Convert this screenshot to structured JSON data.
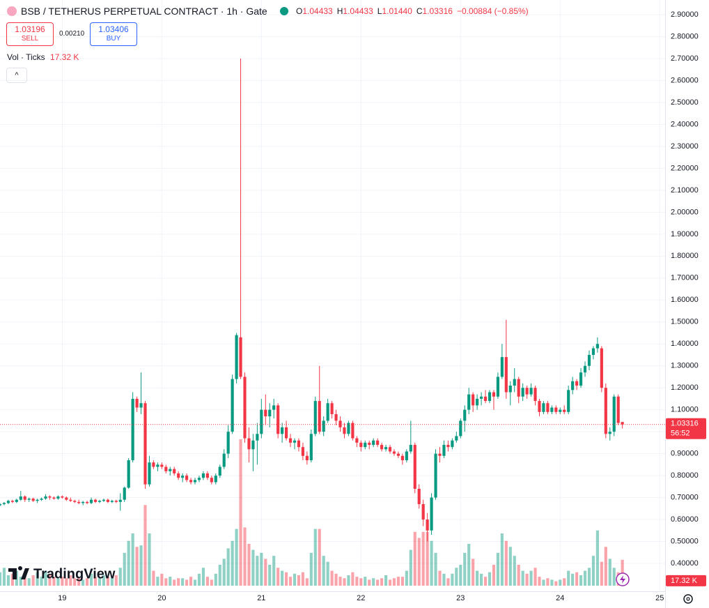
{
  "chart_data": {
    "type": "candlestick",
    "title": "BSB / TETHERUS PERPETUAL CONTRACT · 1h · Gate",
    "ohlc_legend": [
      {
        "label": "O",
        "value": "1.04433"
      },
      {
        "label": "H",
        "value": "1.04433"
      },
      {
        "label": "L",
        "value": "1.01440"
      },
      {
        "label": "C",
        "value": "1.03316"
      }
    ],
    "change": "−0.00884 (−0.85%)",
    "sell": {
      "price": "1.03196",
      "label": "SELL"
    },
    "spread": "0.00210",
    "buy": {
      "price": "1.03406",
      "label": "BUY"
    },
    "volume_legend": {
      "label": "Vol · Ticks",
      "value": "17.32 K"
    },
    "price_label": {
      "value": "1.03316",
      "countdown": "56:52"
    },
    "volume_tag": "17.32 K",
    "watermark": "TradingView",
    "up_color": "#089981",
    "down_color": "#f23645",
    "grid": true,
    "xlim": [
      0,
      160.3
    ],
    "xticks": [
      {
        "value": 15,
        "label": "19"
      },
      {
        "value": 39,
        "label": "20"
      },
      {
        "value": 63,
        "label": "21"
      },
      {
        "value": 87,
        "label": "22"
      },
      {
        "value": 111,
        "label": "23"
      },
      {
        "value": 135,
        "label": "24"
      },
      {
        "value": 159,
        "label": "25"
      }
    ],
    "ylim": [
      0.273,
      2.967
    ],
    "yticks": [
      {
        "value": 0.4,
        "label": "0.40000"
      },
      {
        "value": 0.5,
        "label": "0.50000"
      },
      {
        "value": 0.6,
        "label": "0.60000"
      },
      {
        "value": 0.7,
        "label": "0.70000"
      },
      {
        "value": 0.8,
        "label": "0.80000"
      },
      {
        "value": 0.9,
        "label": "0.90000"
      },
      {
        "value": 1.0,
        "label": "1.00000"
      },
      {
        "value": 1.1,
        "label": "1.10000"
      },
      {
        "value": 1.2,
        "label": "1.20000"
      },
      {
        "value": 1.3,
        "label": "1.30000"
      },
      {
        "value": 1.4,
        "label": "1.40000"
      },
      {
        "value": 1.5,
        "label": "1.50000"
      },
      {
        "value": 1.6,
        "label": "1.60000"
      },
      {
        "value": 1.7,
        "label": "1.70000"
      },
      {
        "value": 1.8,
        "label": "1.80000"
      },
      {
        "value": 1.9,
        "label": "1.90000"
      },
      {
        "value": 2.0,
        "label": "2.00000"
      },
      {
        "value": 2.1,
        "label": "2.10000"
      },
      {
        "value": 2.2,
        "label": "2.20000"
      },
      {
        "value": 2.3,
        "label": "2.30000"
      },
      {
        "value": 2.4,
        "label": "2.40000"
      },
      {
        "value": 2.5,
        "label": "2.50000"
      },
      {
        "value": 2.6,
        "label": "2.60000"
      },
      {
        "value": 2.7,
        "label": "2.70000"
      },
      {
        "value": 2.8,
        "label": "2.80000"
      },
      {
        "value": 2.9,
        "label": "2.90000"
      }
    ],
    "candles": [
      [
        0.665,
        0.675,
        0.66,
        0.67
      ],
      [
        0.67,
        0.68,
        0.665,
        0.675
      ],
      [
        0.675,
        0.69,
        0.67,
        0.685
      ],
      [
        0.685,
        0.69,
        0.675,
        0.68
      ],
      [
        0.68,
        0.695,
        0.675,
        0.69
      ],
      [
        0.69,
        0.73,
        0.685,
        0.705
      ],
      [
        0.705,
        0.71,
        0.68,
        0.69
      ],
      [
        0.69,
        0.7,
        0.68,
        0.695
      ],
      [
        0.695,
        0.7,
        0.68,
        0.685
      ],
      [
        0.685,
        0.695,
        0.675,
        0.69
      ],
      [
        0.69,
        0.7,
        0.685,
        0.695
      ],
      [
        0.695,
        0.715,
        0.69,
        0.705
      ],
      [
        0.705,
        0.71,
        0.69,
        0.7
      ],
      [
        0.7,
        0.705,
        0.69,
        0.695
      ],
      [
        0.695,
        0.71,
        0.69,
        0.705
      ],
      [
        0.705,
        0.71,
        0.695,
        0.7
      ],
      [
        0.7,
        0.705,
        0.685,
        0.69
      ],
      [
        0.69,
        0.7,
        0.68,
        0.685
      ],
      [
        0.685,
        0.69,
        0.675,
        0.68
      ],
      [
        0.68,
        0.69,
        0.67,
        0.675
      ],
      [
        0.675,
        0.685,
        0.665,
        0.68
      ],
      [
        0.68,
        0.685,
        0.67,
        0.675
      ],
      [
        0.675,
        0.7,
        0.67,
        0.69
      ],
      [
        0.69,
        0.695,
        0.675,
        0.68
      ],
      [
        0.68,
        0.69,
        0.675,
        0.685
      ],
      [
        0.685,
        0.695,
        0.68,
        0.69
      ],
      [
        0.69,
        0.695,
        0.675,
        0.68
      ],
      [
        0.68,
        0.69,
        0.675,
        0.685
      ],
      [
        0.685,
        0.69,
        0.675,
        0.68
      ],
      [
        0.68,
        0.72,
        0.64,
        0.69
      ],
      [
        0.69,
        0.75,
        0.68,
        0.745
      ],
      [
        0.745,
        0.88,
        0.74,
        0.87
      ],
      [
        0.87,
        1.18,
        0.86,
        1.15
      ],
      [
        1.15,
        1.16,
        1.09,
        1.11
      ],
      [
        1.11,
        1.27,
        1.08,
        1.13
      ],
      [
        1.13,
        1.14,
        0.74,
        0.76
      ],
      [
        0.76,
        0.89,
        0.75,
        0.86
      ],
      [
        0.86,
        0.87,
        0.83,
        0.84
      ],
      [
        0.84,
        0.86,
        0.82,
        0.85
      ],
      [
        0.85,
        0.86,
        0.83,
        0.84
      ],
      [
        0.84,
        0.85,
        0.81,
        0.82
      ],
      [
        0.82,
        0.84,
        0.8,
        0.83
      ],
      [
        0.83,
        0.84,
        0.8,
        0.81
      ],
      [
        0.81,
        0.82,
        0.78,
        0.79
      ],
      [
        0.79,
        0.81,
        0.77,
        0.8
      ],
      [
        0.8,
        0.81,
        0.77,
        0.78
      ],
      [
        0.78,
        0.79,
        0.76,
        0.77
      ],
      [
        0.77,
        0.79,
        0.76,
        0.78
      ],
      [
        0.78,
        0.8,
        0.77,
        0.79
      ],
      [
        0.79,
        0.82,
        0.78,
        0.81
      ],
      [
        0.81,
        0.82,
        0.78,
        0.79
      ],
      [
        0.79,
        0.8,
        0.76,
        0.77
      ],
      [
        0.77,
        0.81,
        0.76,
        0.8
      ],
      [
        0.8,
        0.85,
        0.79,
        0.84
      ],
      [
        0.84,
        0.92,
        0.83,
        0.9
      ],
      [
        0.9,
        1.03,
        0.88,
        1.0
      ],
      [
        1.0,
        1.26,
        0.99,
        1.24
      ],
      [
        1.24,
        1.45,
        1.22,
        1.44
      ],
      [
        1.43,
        2.7,
        1.24,
        1.25
      ],
      [
        1.25,
        1.27,
        0.95,
        0.97
      ],
      [
        0.97,
        1.02,
        0.86,
        0.92
      ],
      [
        0.92,
        0.99,
        0.82,
        0.96
      ],
      [
        0.96,
        1.04,
        0.85,
        0.99
      ],
      [
        0.99,
        1.15,
        0.97,
        1.1
      ],
      [
        1.1,
        1.17,
        1.03,
        1.07
      ],
      [
        1.07,
        1.13,
        1.02,
        1.1
      ],
      [
        1.1,
        1.15,
        1.06,
        1.12
      ],
      [
        1.12,
        1.13,
        0.97,
        0.99
      ],
      [
        0.99,
        1.04,
        0.95,
        1.02
      ],
      [
        1.02,
        1.05,
        0.96,
        0.97
      ],
      [
        0.97,
        0.99,
        0.93,
        0.95
      ],
      [
        0.95,
        0.97,
        0.92,
        0.96
      ],
      [
        0.96,
        0.97,
        0.91,
        0.93
      ],
      [
        0.93,
        0.95,
        0.87,
        0.89
      ],
      [
        0.89,
        0.91,
        0.85,
        0.87
      ],
      [
        0.87,
        1.01,
        0.86,
        0.99
      ],
      [
        0.99,
        1.16,
        0.98,
        1.14
      ],
      [
        1.14,
        1.3,
        0.99,
        1.0
      ],
      [
        1.0,
        1.07,
        0.98,
        1.05
      ],
      [
        1.05,
        1.15,
        1.04,
        1.13
      ],
      [
        1.13,
        1.14,
        1.06,
        1.08
      ],
      [
        1.08,
        1.1,
        1.03,
        1.05
      ],
      [
        1.05,
        1.07,
        1.0,
        1.02
      ],
      [
        1.02,
        1.04,
        0.97,
        0.99
      ],
      [
        0.99,
        1.05,
        0.98,
        1.04
      ],
      [
        1.04,
        1.05,
        0.96,
        0.97
      ],
      [
        0.97,
        0.98,
        0.93,
        0.95
      ],
      [
        0.95,
        0.96,
        0.91,
        0.93
      ],
      [
        0.93,
        0.96,
        0.92,
        0.95
      ],
      [
        0.95,
        0.96,
        0.92,
        0.94
      ],
      [
        0.94,
        0.97,
        0.93,
        0.96
      ],
      [
        0.96,
        0.97,
        0.93,
        0.94
      ],
      [
        0.94,
        0.95,
        0.91,
        0.92
      ],
      [
        0.92,
        0.94,
        0.91,
        0.93
      ],
      [
        0.93,
        0.94,
        0.9,
        0.91
      ],
      [
        0.91,
        0.92,
        0.89,
        0.9
      ],
      [
        0.9,
        0.91,
        0.88,
        0.89
      ],
      [
        0.89,
        0.9,
        0.85,
        0.87
      ],
      [
        0.87,
        0.92,
        0.86,
        0.91
      ],
      [
        0.91,
        1.05,
        0.9,
        0.94
      ],
      [
        0.94,
        0.95,
        0.72,
        0.74
      ],
      [
        0.74,
        0.76,
        0.65,
        0.67
      ],
      [
        0.67,
        0.69,
        0.57,
        0.6
      ],
      [
        0.6,
        0.63,
        0.5,
        0.55
      ],
      [
        0.55,
        0.72,
        0.53,
        0.7
      ],
      [
        0.7,
        0.92,
        0.69,
        0.9
      ],
      [
        0.9,
        0.93,
        0.86,
        0.89
      ],
      [
        0.89,
        0.96,
        0.88,
        0.94
      ],
      [
        0.94,
        0.96,
        0.91,
        0.93
      ],
      [
        0.93,
        0.97,
        0.92,
        0.96
      ],
      [
        0.96,
        1.0,
        0.95,
        0.98
      ],
      [
        0.98,
        1.06,
        0.97,
        1.05
      ],
      [
        1.05,
        1.12,
        1.0,
        1.1
      ],
      [
        1.1,
        1.2,
        1.08,
        1.17
      ],
      [
        1.17,
        1.18,
        1.09,
        1.12
      ],
      [
        1.12,
        1.17,
        1.1,
        1.15
      ],
      [
        1.15,
        1.18,
        1.12,
        1.16
      ],
      [
        1.16,
        1.19,
        1.13,
        1.14
      ],
      [
        1.14,
        1.19,
        1.13,
        1.18
      ],
      [
        1.18,
        1.19,
        1.1,
        1.16
      ],
      [
        1.16,
        1.27,
        1.15,
        1.25
      ],
      [
        1.25,
        1.4,
        1.24,
        1.34
      ],
      [
        1.34,
        1.51,
        1.15,
        1.18
      ],
      [
        1.18,
        1.23,
        1.12,
        1.21
      ],
      [
        1.21,
        1.29,
        1.18,
        1.24
      ],
      [
        1.24,
        1.25,
        1.13,
        1.16
      ],
      [
        1.16,
        1.22,
        1.14,
        1.2
      ],
      [
        1.2,
        1.21,
        1.15,
        1.17
      ],
      [
        1.17,
        1.22,
        1.16,
        1.2
      ],
      [
        1.2,
        1.21,
        1.12,
        1.14
      ],
      [
        1.14,
        1.15,
        1.07,
        1.09
      ],
      [
        1.09,
        1.14,
        1.08,
        1.13
      ],
      [
        1.13,
        1.14,
        1.08,
        1.09
      ],
      [
        1.09,
        1.12,
        1.08,
        1.11
      ],
      [
        1.11,
        1.12,
        1.08,
        1.09
      ],
      [
        1.09,
        1.11,
        1.08,
        1.1
      ],
      [
        1.1,
        1.12,
        1.08,
        1.09
      ],
      [
        1.09,
        1.21,
        1.08,
        1.19
      ],
      [
        1.19,
        1.25,
        1.17,
        1.23
      ],
      [
        1.23,
        1.24,
        1.19,
        1.21
      ],
      [
        1.21,
        1.29,
        1.2,
        1.27
      ],
      [
        1.27,
        1.32,
        1.25,
        1.3
      ],
      [
        1.3,
        1.37,
        1.28,
        1.35
      ],
      [
        1.35,
        1.39,
        1.33,
        1.38
      ],
      [
        1.38,
        1.43,
        1.36,
        1.4
      ],
      [
        1.38,
        1.39,
        1.18,
        1.2
      ],
      [
        1.2,
        1.22,
        0.97,
        0.99
      ],
      [
        0.99,
        1.02,
        0.96,
        1.0
      ],
      [
        1.0,
        1.17,
        0.98,
        1.16
      ],
      [
        1.16,
        1.17,
        1.03,
        1.04
      ],
      [
        1.04433,
        1.04433,
        1.0144,
        1.03316
      ]
    ],
    "volume": [
      9,
      12,
      7,
      8,
      10,
      6,
      8,
      5,
      7,
      9,
      6,
      10,
      8,
      6,
      5,
      6,
      5,
      7,
      5,
      6,
      4,
      5,
      8,
      6,
      5,
      7,
      6,
      5,
      7,
      12,
      22,
      30,
      35,
      26,
      27,
      54,
      35,
      10,
      6,
      8,
      5,
      6,
      4,
      5,
      5,
      4,
      6,
      4,
      8,
      12,
      6,
      4,
      8,
      14,
      18,
      25,
      30,
      38,
      98,
      39,
      28,
      24,
      20,
      22,
      18,
      14,
      20,
      12,
      10,
      9,
      6,
      8,
      7,
      9,
      5,
      22,
      38,
      38,
      20,
      16,
      10,
      8,
      6,
      5,
      7,
      9,
      6,
      5,
      6,
      4,
      5,
      4,
      5,
      7,
      4,
      5,
      6,
      6,
      10,
      24,
      36,
      32,
      36,
      36,
      30,
      22,
      10,
      8,
      5,
      8,
      12,
      14,
      22,
      28,
      18,
      10,
      8,
      6,
      9,
      14,
      22,
      35,
      30,
      26,
      20,
      14,
      10,
      8,
      10,
      12,
      6,
      4,
      5,
      4,
      3,
      4,
      5,
      10,
      8,
      9,
      7,
      10,
      12,
      20,
      37,
      16,
      26,
      18,
      12,
      9,
      17.32
    ]
  }
}
